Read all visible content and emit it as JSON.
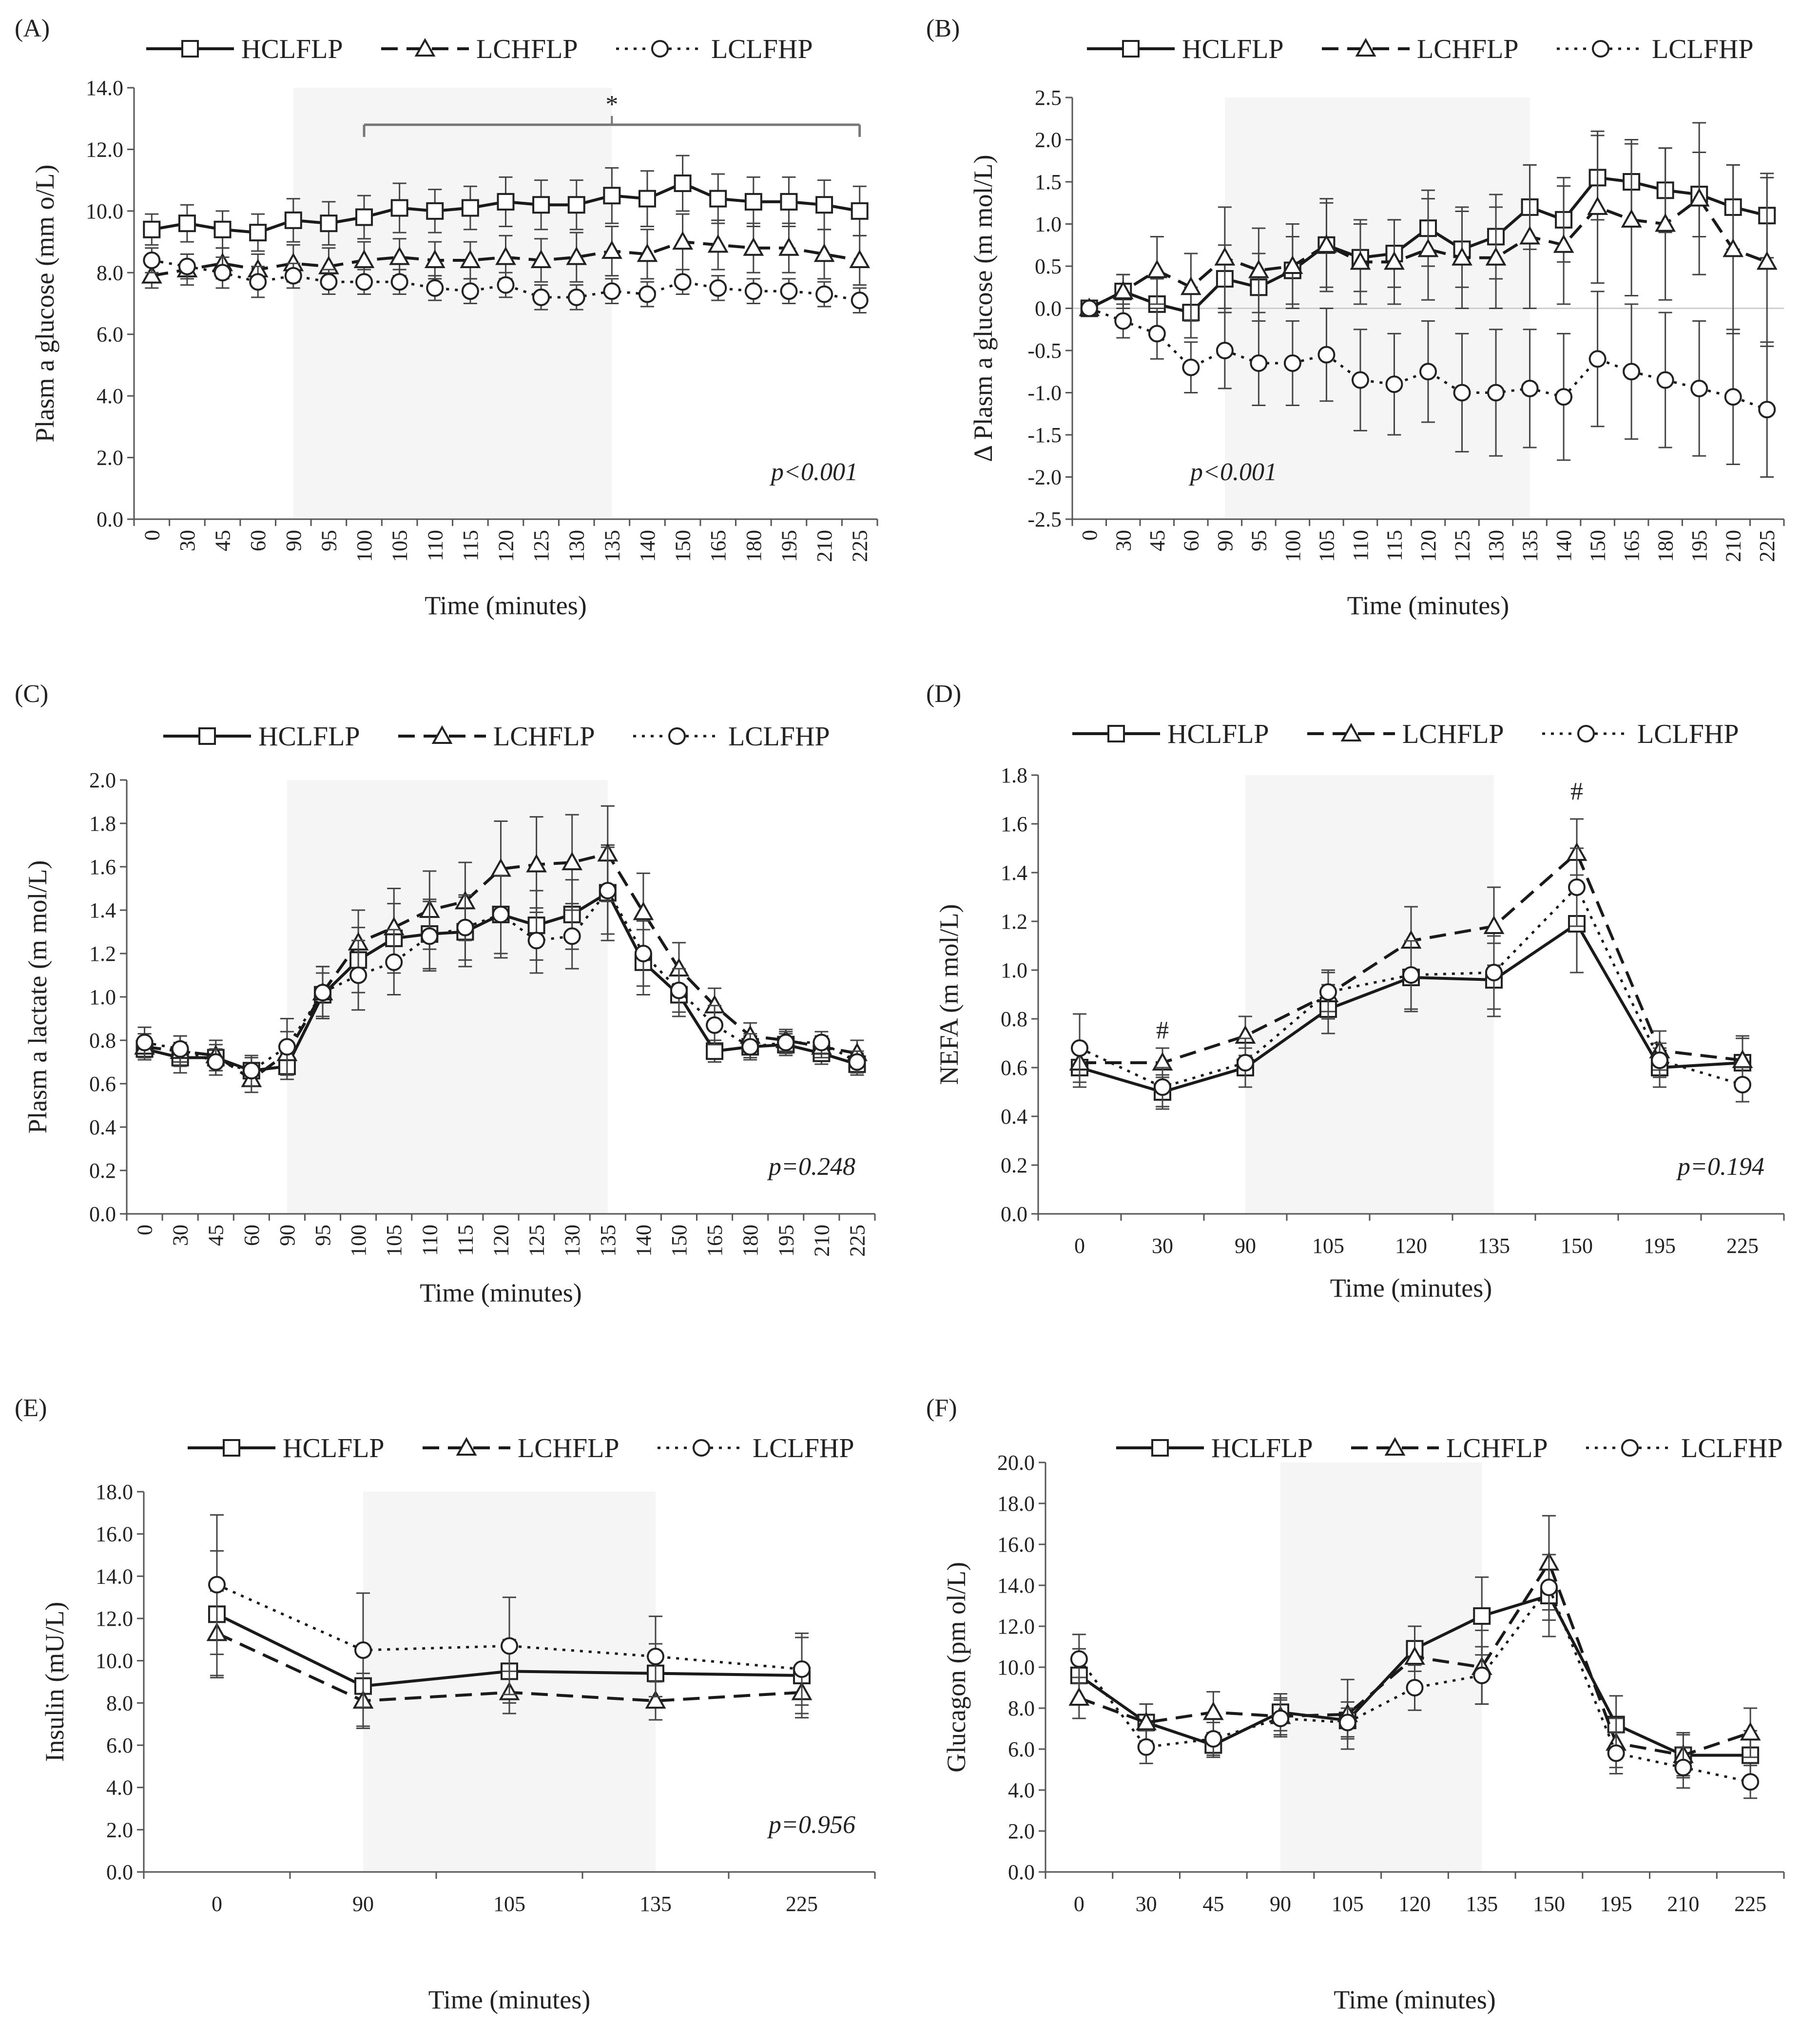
{
  "legend": [
    "HCLFLP",
    "LCHFLP",
    "LCLFHP"
  ],
  "chart_data": [
    {
      "id": "A",
      "label": "(A)",
      "type": "line",
      "ylabel": "Plasm a glucose (mm o/L)",
      "xlabel": "Time (minutes)",
      "ylim": [
        0,
        14
      ],
      "ytick_step": 2,
      "ytick_decimals": 1,
      "xrot": true,
      "x": [
        "0",
        "30",
        "45",
        "60",
        "90",
        "95",
        "100",
        "105",
        "110",
        "115",
        "120",
        "125",
        "130",
        "135",
        "140",
        "150",
        "165",
        "180",
        "195",
        "210",
        "225"
      ],
      "shade": [
        4,
        13
      ],
      "pvalue": "p<0.001",
      "annotation": {
        "text": "*",
        "bracket": [
          6,
          20
        ],
        "y": 12.8
      },
      "series": [
        {
          "name": "HCLFLP",
          "values": [
            9.4,
            9.6,
            9.4,
            9.3,
            9.7,
            9.6,
            9.8,
            10.1,
            10.0,
            10.1,
            10.3,
            10.2,
            10.2,
            10.5,
            10.4,
            10.9,
            10.4,
            10.3,
            10.3,
            10.2,
            10.0
          ],
          "err": [
            0.5,
            0.6,
            0.6,
            0.6,
            0.7,
            0.7,
            0.7,
            0.8,
            0.7,
            0.7,
            0.8,
            0.8,
            0.8,
            0.9,
            0.9,
            0.9,
            0.8,
            0.8,
            0.8,
            0.8,
            0.8
          ]
        },
        {
          "name": "LCHFLP",
          "values": [
            7.9,
            8.1,
            8.3,
            8.1,
            8.3,
            8.2,
            8.4,
            8.5,
            8.4,
            8.4,
            8.5,
            8.4,
            8.5,
            8.7,
            8.6,
            9.0,
            8.9,
            8.8,
            8.8,
            8.6,
            8.4
          ],
          "err": [
            0.4,
            0.5,
            0.5,
            0.5,
            0.6,
            0.6,
            0.6,
            0.6,
            0.6,
            0.6,
            0.7,
            0.7,
            0.8,
            0.8,
            0.8,
            0.9,
            0.8,
            0.8,
            0.8,
            0.8,
            0.8
          ]
        },
        {
          "name": "LCLFHP",
          "values": [
            8.4,
            8.2,
            8.0,
            7.7,
            7.9,
            7.7,
            7.7,
            7.7,
            7.5,
            7.4,
            7.6,
            7.2,
            7.2,
            7.4,
            7.3,
            7.7,
            7.5,
            7.4,
            7.4,
            7.3,
            7.1
          ],
          "err": [
            0.4,
            0.4,
            0.5,
            0.5,
            0.4,
            0.4,
            0.4,
            0.4,
            0.4,
            0.4,
            0.4,
            0.4,
            0.4,
            0.4,
            0.4,
            0.4,
            0.4,
            0.4,
            0.4,
            0.4,
            0.4
          ]
        }
      ]
    },
    {
      "id": "B",
      "label": "(B)",
      "type": "line",
      "ylabel": "Δ Plasm a glucose (m mol/L)",
      "xlabel": "Time (minutes)",
      "ylim": [
        -2.5,
        2.5
      ],
      "ytick_step": 0.5,
      "ytick_decimals": 1,
      "xrot": true,
      "zero_line": true,
      "x": [
        "0",
        "30",
        "45",
        "60",
        "90",
        "95",
        "100",
        "105",
        "110",
        "115",
        "120",
        "125",
        "130",
        "135",
        "140",
        "150",
        "165",
        "180",
        "195",
        "210",
        "225"
      ],
      "shade": [
        4,
        13
      ],
      "pvalue": "p<0.001",
      "series": [
        {
          "name": "HCLFLP",
          "values": [
            0.0,
            0.2,
            0.05,
            -0.05,
            0.35,
            0.25,
            0.45,
            0.75,
            0.6,
            0.65,
            0.95,
            0.7,
            0.85,
            1.2,
            1.05,
            1.55,
            1.5,
            1.4,
            1.35,
            1.2,
            1.1
          ],
          "err": [
            0.05,
            0.2,
            0.3,
            0.3,
            0.4,
            0.4,
            0.4,
            0.5,
            0.4,
            0.4,
            0.45,
            0.45,
            0.5,
            0.5,
            0.5,
            0.5,
            0.5,
            0.5,
            0.5,
            0.5,
            0.5
          ]
        },
        {
          "name": "LCHFLP",
          "values": [
            0.0,
            0.2,
            0.45,
            0.25,
            0.6,
            0.45,
            0.5,
            0.75,
            0.55,
            0.55,
            0.7,
            0.6,
            0.6,
            0.85,
            0.75,
            1.2,
            1.05,
            1.0,
            1.3,
            0.7,
            0.55
          ],
          "err": [
            0.05,
            0.2,
            0.4,
            0.4,
            0.6,
            0.5,
            0.5,
            0.55,
            0.5,
            0.5,
            0.6,
            0.6,
            0.6,
            0.85,
            0.7,
            0.9,
            0.9,
            0.9,
            0.9,
            1.0,
            1.0
          ]
        },
        {
          "name": "LCLFHP",
          "values": [
            0.0,
            -0.15,
            -0.3,
            -0.7,
            -0.5,
            -0.65,
            -0.65,
            -0.55,
            -0.85,
            -0.9,
            -0.75,
            -1.0,
            -1.0,
            -0.95,
            -1.05,
            -0.6,
            -0.75,
            -0.85,
            -0.95,
            -1.05,
            -1.2
          ],
          "err": [
            0.05,
            0.2,
            0.3,
            0.3,
            0.45,
            0.5,
            0.5,
            0.55,
            0.6,
            0.6,
            0.6,
            0.7,
            0.75,
            0.7,
            0.75,
            0.8,
            0.8,
            0.8,
            0.8,
            0.8,
            0.8
          ]
        }
      ]
    },
    {
      "id": "C",
      "label": "(C)",
      "type": "line",
      "ylabel": "Plasm a lactate (m mol/L)",
      "xlabel": "Time (minutes)",
      "ylim": [
        0,
        2
      ],
      "ytick_step": 0.2,
      "ytick_decimals": 1,
      "xrot": true,
      "x": [
        "0",
        "30",
        "45",
        "60",
        "90",
        "95",
        "100",
        "105",
        "110",
        "115",
        "120",
        "125",
        "130",
        "135",
        "140",
        "150",
        "165",
        "180",
        "195",
        "210",
        "225"
      ],
      "shade": [
        4,
        13
      ],
      "pvalue": "p=0.248",
      "series": [
        {
          "name": "HCLFLP",
          "values": [
            0.76,
            0.72,
            0.72,
            0.66,
            0.68,
            1.01,
            1.17,
            1.27,
            1.29,
            1.3,
            1.38,
            1.33,
            1.38,
            1.48,
            1.16,
            1.01,
            0.75,
            0.77,
            0.78,
            0.74,
            0.69
          ],
          "err": [
            0.05,
            0.07,
            0.06,
            0.06,
            0.06,
            0.1,
            0.15,
            0.16,
            0.16,
            0.16,
            0.2,
            0.16,
            0.16,
            0.22,
            0.15,
            0.1,
            0.05,
            0.05,
            0.05,
            0.05,
            0.05
          ]
        },
        {
          "name": "LCHFLP",
          "values": [
            0.77,
            0.75,
            0.73,
            0.62,
            0.74,
            1.02,
            1.25,
            1.32,
            1.4,
            1.44,
            1.59,
            1.61,
            1.62,
            1.66,
            1.39,
            1.13,
            0.96,
            0.82,
            0.8,
            0.77,
            0.74
          ],
          "err": [
            0.06,
            0.07,
            0.07,
            0.06,
            0.1,
            0.12,
            0.15,
            0.18,
            0.18,
            0.18,
            0.22,
            0.22,
            0.22,
            0.22,
            0.18,
            0.12,
            0.08,
            0.06,
            0.05,
            0.05,
            0.06
          ]
        },
        {
          "name": "LCLFHP",
          "values": [
            0.79,
            0.76,
            0.7,
            0.66,
            0.77,
            1.02,
            1.1,
            1.16,
            1.28,
            1.32,
            1.38,
            1.26,
            1.28,
            1.49,
            1.2,
            1.03,
            0.87,
            0.77,
            0.79,
            0.79,
            0.7
          ],
          "err": [
            0.07,
            0.06,
            0.06,
            0.07,
            0.13,
            0.12,
            0.16,
            0.15,
            0.16,
            0.15,
            0.18,
            0.15,
            0.15,
            0.2,
            0.15,
            0.1,
            0.09,
            0.06,
            0.05,
            0.05,
            0.05
          ]
        }
      ]
    },
    {
      "id": "D",
      "label": "(D)",
      "type": "line",
      "ylabel": "NEFA (m mol/L)",
      "xlabel": "Time (minutes)",
      "ylim": [
        0,
        1.8
      ],
      "ytick_step": 0.2,
      "ytick_decimals": 1,
      "xrot": false,
      "x": [
        "0",
        "30",
        "90",
        "105",
        "120",
        "135",
        "150",
        "195",
        "225"
      ],
      "shade": [
        2,
        5
      ],
      "pvalue": "p=0.194",
      "hash_marks": [
        {
          "i": 1,
          "y": 0.72,
          "text": "#"
        },
        {
          "i": 6,
          "y": 1.7,
          "text": "#"
        }
      ],
      "series": [
        {
          "name": "HCLFLP",
          "values": [
            0.6,
            0.5,
            0.6,
            0.84,
            0.97,
            0.96,
            1.19,
            0.6,
            0.62
          ],
          "err": [
            0.08,
            0.07,
            0.08,
            0.1,
            0.14,
            0.15,
            0.2,
            0.08,
            0.1
          ]
        },
        {
          "name": "LCHFLP",
          "values": [
            0.62,
            0.62,
            0.73,
            0.9,
            1.12,
            1.18,
            1.48,
            0.67,
            0.63
          ],
          "err": [
            0.08,
            0.06,
            0.08,
            0.1,
            0.14,
            0.16,
            0.14,
            0.08,
            0.1
          ]
        },
        {
          "name": "LCLFHP",
          "values": [
            0.68,
            0.52,
            0.62,
            0.91,
            0.98,
            0.99,
            1.34,
            0.63,
            0.53
          ],
          "err": [
            0.14,
            0.08,
            0.1,
            0.08,
            0.14,
            0.15,
            0.16,
            0.07,
            0.07
          ]
        }
      ]
    },
    {
      "id": "E",
      "label": "(E)",
      "type": "line",
      "ylabel": "Insulin (mU/L)",
      "xlabel": "Time (minutes)",
      "ylim": [
        0,
        18
      ],
      "ytick_step": 2,
      "ytick_decimals": 1,
      "xrot": false,
      "x": [
        "0",
        "90",
        "105",
        "135",
        "225"
      ],
      "shade": [
        1,
        3
      ],
      "pvalue": "p=0.956",
      "series": [
        {
          "name": "HCLFLP",
          "values": [
            12.2,
            8.8,
            9.5,
            9.4,
            9.3
          ],
          "err": [
            3.0,
            1.9,
            1.5,
            1.4,
            1.8
          ]
        },
        {
          "name": "LCHFLP",
          "values": [
            11.3,
            8.1,
            8.5,
            8.1,
            8.5
          ],
          "err": [
            2.0,
            1.3,
            1.0,
            0.9,
            1.2
          ]
        },
        {
          "name": "LCLFHP",
          "values": [
            13.6,
            10.5,
            10.7,
            10.2,
            9.6
          ],
          "err": [
            3.3,
            2.7,
            2.3,
            1.9,
            1.7
          ]
        }
      ]
    },
    {
      "id": "F",
      "label": "(F)",
      "type": "line",
      "ylabel": "Glucagon (pm ol/L)",
      "xlabel": "Time (minutes)",
      "ylim": [
        0,
        20
      ],
      "ytick_step": 2,
      "ytick_decimals": 1,
      "xrot": false,
      "x": [
        "0",
        "30",
        "45",
        "90",
        "105",
        "120",
        "135",
        "150",
        "195",
        "210",
        "225"
      ],
      "shade": [
        3,
        6
      ],
      "pvalue": "",
      "series": [
        {
          "name": "HCLFLP",
          "values": [
            9.6,
            7.3,
            6.2,
            7.8,
            7.4,
            10.9,
            12.5,
            13.5,
            7.2,
            5.7,
            5.7
          ],
          "err": [
            1.3,
            0.9,
            0.6,
            0.9,
            0.9,
            1.1,
            1.9,
            2.0,
            1.4,
            1.0,
            1.2
          ]
        },
        {
          "name": "LCHFLP",
          "values": [
            8.5,
            7.3,
            7.8,
            7.6,
            7.7,
            10.5,
            10.0,
            15.1,
            6.3,
            5.7,
            6.8
          ],
          "err": [
            1.0,
            0.9,
            1.0,
            0.9,
            1.7,
            1.5,
            1.8,
            2.3,
            1.2,
            1.1,
            1.2
          ]
        },
        {
          "name": "LCLFHP",
          "values": [
            10.4,
            6.1,
            6.5,
            7.5,
            7.3,
            9.0,
            9.6,
            13.9,
            5.8,
            5.1,
            4.4
          ],
          "err": [
            1.2,
            0.8,
            0.8,
            0.9,
            0.7,
            1.1,
            1.4,
            1.6,
            1.0,
            1.0,
            0.8
          ]
        }
      ]
    }
  ]
}
